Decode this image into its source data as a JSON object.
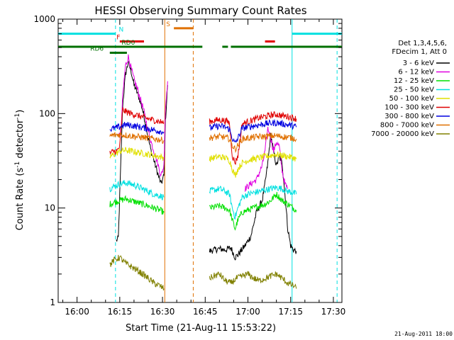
{
  "chart_data": {
    "type": "line",
    "title": "HESSI Observing Summary Count Rates",
    "xlabel": "Start Time (21-Aug-11 15:53:22)",
    "ylabel": "Count Rate (s",
    "ylabel_sup": "-1",
    "ylabel_mid": " detector",
    "ylabel_end": ")",
    "y_scale": "log",
    "ylim": [
      1,
      1000
    ],
    "xlim_minutes_after_1600": [
      -6.63,
      93.0
    ],
    "x_ticks": [
      {
        "t": 0,
        "label": "16:00"
      },
      {
        "t": 15,
        "label": "16:15"
      },
      {
        "t": 30,
        "label": "16:30"
      },
      {
        "t": 45,
        "label": "16:45"
      },
      {
        "t": 60,
        "label": "17:00"
      },
      {
        "t": 75,
        "label": "17:15"
      },
      {
        "t": 90,
        "label": "17:30"
      }
    ],
    "y_ticks": [
      {
        "v": 1,
        "label": "1"
      },
      {
        "v": 10,
        "label": "10"
      },
      {
        "v": 100,
        "label": "100"
      },
      {
        "v": 1000,
        "label": "1000"
      }
    ],
    "legend_header": [
      "Det 1,3,4,5,6,",
      "FDecim 1, Att 0"
    ],
    "legend_placement": "right",
    "series": [
      {
        "name": "3 - 6 keV",
        "color": "#000000",
        "segments": [
          {
            "x": [
              13.8,
              14.5,
              15.5,
              16.0,
              17.0,
              18.0,
              19.0,
              20.0,
              21.0,
              22.0,
              23.0,
              24.0,
              25.0,
              26.0,
              27.0,
              28.0,
              29.0,
              29.5,
              30.5,
              31.0,
              31.8
            ],
            "y": [
              4.5,
              4.8,
              40,
              120,
              260,
              350,
              280,
              200,
              170,
              140,
              110,
              80,
              55,
              40,
              32,
              25,
              20,
              18,
              22,
              80,
              200
            ]
          },
          {
            "x": [
              46.5,
              48.0,
              50.0,
              52.0,
              54.0,
              55.5,
              56.5,
              57.5,
              59.0,
              61.0,
              63.0,
              65.0,
              66.0,
              67.0,
              68.0,
              69.0,
              70.0,
              71.0,
              72.0,
              73.0,
              74.0,
              75.0,
              76.0,
              77.0
            ],
            "y": [
              3.5,
              3.6,
              3.7,
              3.6,
              3.8,
              3.0,
              3.2,
              3.5,
              4.0,
              5.0,
              9.0,
              12,
              18,
              30,
              60,
              40,
              28,
              35,
              30,
              14,
              6,
              4.0,
              3.6,
              3.5
            ]
          }
        ]
      },
      {
        "name": "6 - 12 keV",
        "color": "#e000e0",
        "segments": [
          {
            "x": [
              14.5,
              15.5,
              16.0,
              17.0,
              18.0,
              19.0,
              20.0,
              21.0,
              22.0,
              23.0,
              24.0,
              25.0,
              26.0,
              27.0,
              28.0,
              29.0,
              29.5,
              30.5,
              31.0,
              31.8
            ],
            "y": [
              55,
              70,
              150,
              320,
              400,
              300,
              230,
              190,
              150,
              120,
              90,
              65,
              50,
              40,
              32,
              25,
              22,
              28,
              110,
              220
            ]
          },
          {
            "x": [
              59.0,
              61.0,
              63.0,
              65.0,
              66.0,
              67.0,
              68.0,
              69.0,
              70.0,
              71.0,
              72.0,
              73.0,
              74.0
            ],
            "y": [
              16,
              18,
              20,
              28,
              40,
              70,
              55,
              40,
              50,
              45,
              25,
              18,
              16
            ]
          }
        ]
      },
      {
        "name": "12 - 25 keV",
        "color": "#00e000",
        "segments": [
          {
            "x": [
              11.5,
              13.0,
              15.0,
              17.0,
              19.0,
              21.0,
              23.0,
              25.0,
              27.0,
              29.0,
              30.5
            ],
            "y": [
              11,
              11.5,
              12,
              12.5,
              12,
              11.5,
              11,
              10.5,
              10,
              9.5,
              9
            ]
          },
          {
            "x": [
              46.5,
              48.0,
              50.0,
              52.0,
              53.5,
              54.5,
              55.5,
              56.5,
              58.0,
              60.0,
              62.0,
              64.0,
              66.0,
              68.0,
              70.0,
              72.0,
              74.0,
              76.0,
              77.0
            ],
            "y": [
              10,
              10.2,
              10.5,
              10,
              9.5,
              7.5,
              6,
              7.5,
              9,
              9.5,
              10,
              10.5,
              11,
              12,
              14,
              12,
              11,
              10,
              9.5
            ]
          }
        ]
      },
      {
        "name": "25 - 50 keV",
        "color": "#00e0e0",
        "segments": [
          {
            "x": [
              11.5,
              13.0,
              15.0,
              17.0,
              19.0,
              21.0,
              23.0,
              25.0,
              27.0,
              29.0,
              30.5
            ],
            "y": [
              16,
              17,
              18,
              18.5,
              18,
              17,
              16,
              15,
              14,
              13.5,
              13
            ]
          },
          {
            "x": [
              46.5,
              48.0,
              50.0,
              52.0,
              53.5,
              54.5,
              55.5,
              56.5,
              58.0,
              60.0,
              62.0,
              64.0,
              66.0,
              68.0,
              70.0,
              72.0,
              74.0,
              76.0,
              77.0
            ],
            "y": [
              15,
              15.5,
              16,
              15,
              14,
              10,
              8,
              10,
              13,
              14,
              14.5,
              15,
              15.5,
              16,
              16.5,
              16,
              15,
              14.5,
              14
            ]
          }
        ]
      },
      {
        "name": "50 - 100 keV",
        "color": "#e0e000",
        "segments": [
          {
            "x": [
              11.5,
              13.0,
              15.0,
              17.0,
              19.0,
              21.0,
              23.0,
              25.0,
              27.0,
              29.0,
              30.5
            ],
            "y": [
              35,
              37,
              40,
              41,
              40,
              39,
              38,
              37,
              36,
              35,
              34
            ]
          },
          {
            "x": [
              46.5,
              48.0,
              50.0,
              52.0,
              53.5,
              54.5,
              55.5,
              56.5,
              58.0,
              60.0,
              62.0,
              64.0,
              66.0,
              68.0,
              70.0,
              72.0,
              74.0,
              76.0,
              77.0
            ],
            "y": [
              33,
              34,
              35,
              34,
              32,
              26,
              22,
              26,
              30,
              32,
              33,
              34,
              35,
              36,
              37,
              36,
              35,
              34,
              33
            ]
          }
        ]
      },
      {
        "name": "100 - 300 keV",
        "color": "#e00000",
        "segments": [
          {
            "x": [
              11.5,
              13.0,
              14.0,
              15.0,
              16.0,
              17.0,
              19.0,
              21.0,
              23.0,
              25.0,
              27.0,
              29.0,
              30.5
            ],
            "y": [
              38,
              40,
              40,
              45,
              110,
              105,
              100,
              96,
              92,
              88,
              85,
              82,
              80
            ]
          },
          {
            "x": [
              46.5,
              48.0,
              50.0,
              52.0,
              53.5,
              54.5,
              55.5,
              56.5,
              58.0,
              60.0,
              62.0,
              64.0,
              66.0,
              68.0,
              70.0,
              72.0,
              74.0,
              76.0,
              77.0
            ],
            "y": [
              82,
              84,
              86,
              84,
              80,
              36,
              30,
              36,
              78,
              82,
              86,
              90,
              93,
              96,
              98,
              95,
              93,
              90,
              88
            ]
          }
        ]
      },
      {
        "name": "300 - 800 keV",
        "color": "#0000e0",
        "segments": [
          {
            "x": [
              11.5,
              13.0,
              15.0,
              16.0,
              17.0,
              19.0,
              21.0,
              23.0,
              25.0,
              27.0,
              29.0,
              30.5
            ],
            "y": [
              68,
              70,
              72,
              75,
              76,
              75,
              73,
              71,
              69,
              67,
              65,
              64
            ]
          },
          {
            "x": [
              46.5,
              48.0,
              50.0,
              52.0,
              53.5,
              54.5,
              55.5,
              56.5,
              58.0,
              60.0,
              62.0,
              64.0,
              66.0,
              68.0,
              70.0,
              72.0,
              74.0,
              76.0,
              77.0
            ],
            "y": [
              70,
              72,
              74,
              72,
              68,
              55,
              48,
              55,
              70,
              72,
              74,
              76,
              78,
              79,
              80,
              78,
              76,
              74,
              72
            ]
          }
        ]
      },
      {
        "name": "800 - 7000 keV",
        "color": "#e07000",
        "segments": [
          {
            "x": [
              11.5,
              13.0,
              15.0,
              17.0,
              19.0,
              21.0,
              23.0,
              25.0,
              27.0,
              29.0,
              30.5
            ],
            "y": [
              58,
              59,
              60,
              59,
              58,
              57,
              56,
              55,
              54,
              53,
              52
            ]
          },
          {
            "x": [
              46.5,
              48.0,
              50.0,
              52.0,
              53.5,
              54.5,
              55.5,
              56.5,
              58.0,
              60.0,
              62.0,
              64.0,
              66.0,
              68.0,
              70.0,
              72.0,
              74.0,
              76.0,
              77.0
            ],
            "y": [
              55,
              56,
              57,
              56,
              54,
              46,
              42,
              46,
              54,
              55,
              56,
              57,
              57,
              58,
              58,
              57,
              56,
              55,
              54
            ]
          }
        ]
      },
      {
        "name": "7000 - 20000 keV",
        "color": "#808000",
        "segments": [
          {
            "x": [
              11.5,
              13.0,
              15.0,
              17.0,
              19.0,
              21.0,
              23.0,
              25.0,
              27.0,
              29.0,
              30.5
            ],
            "y": [
              2.5,
              2.8,
              3.0,
              2.6,
              2.4,
              2.2,
              2.0,
              1.8,
              1.6,
              1.5,
              1.4
            ]
          },
          {
            "x": [
              46.5,
              48.0,
              50.0,
              52.0,
              54.0,
              56.0,
              58.0,
              60.0,
              62.0,
              64.0,
              66.0,
              68.0,
              70.0,
              72.0,
              74.0,
              76.0,
              77.0
            ],
            "y": [
              1.8,
              1.9,
              2.0,
              1.7,
              1.6,
              1.8,
              1.9,
              2.0,
              1.8,
              1.7,
              1.8,
              1.9,
              2.0,
              1.8,
              1.6,
              1.5,
              1.4
            ]
          }
        ]
      }
    ],
    "flags": [
      {
        "label": "N",
        "color": "#00e0e0",
        "level": 700,
        "label_at": 15.5,
        "segments": [
          [
            -6.6,
            13.5
          ],
          [
            75.5,
            93.0
          ]
        ]
      },
      {
        "label": "F",
        "color": "#e00000",
        "level": 580,
        "label_at": 14.5,
        "segments": [
          [
            15.0,
            23.5
          ],
          [
            66.0,
            69.5
          ]
        ]
      },
      {
        "label": "S",
        "color": "#e07000",
        "level": 800,
        "label_at": 32.0,
        "segments": [
          [
            34.0,
            40.8
          ]
        ]
      },
      {
        "label": "RD0",
        "color": "#007000",
        "level": 510,
        "label_at": 18.0,
        "segments": [
          [
            -6.6,
            44.0
          ],
          [
            51.0,
            53.0
          ],
          [
            54.0,
            93.0
          ]
        ]
      },
      {
        "label": "RD6",
        "color": "#007000",
        "level": 440,
        "label_at": 7.0,
        "segments": [
          [
            11.5,
            17.5
          ]
        ]
      }
    ],
    "vlines": [
      {
        "t": 13.5,
        "color": "#00e0e0",
        "style": "dashed"
      },
      {
        "t": 30.8,
        "color": "#e07000",
        "style": "solid"
      },
      {
        "t": 40.8,
        "color": "#e07000",
        "style": "dashed"
      },
      {
        "t": 75.5,
        "color": "#00e0e0",
        "style": "solid"
      },
      {
        "t": 91.3,
        "color": "#00e0e0",
        "style": "dashed"
      }
    ],
    "grid": false
  },
  "footer": {
    "timestamp": "21-Aug-2011 18:00"
  }
}
